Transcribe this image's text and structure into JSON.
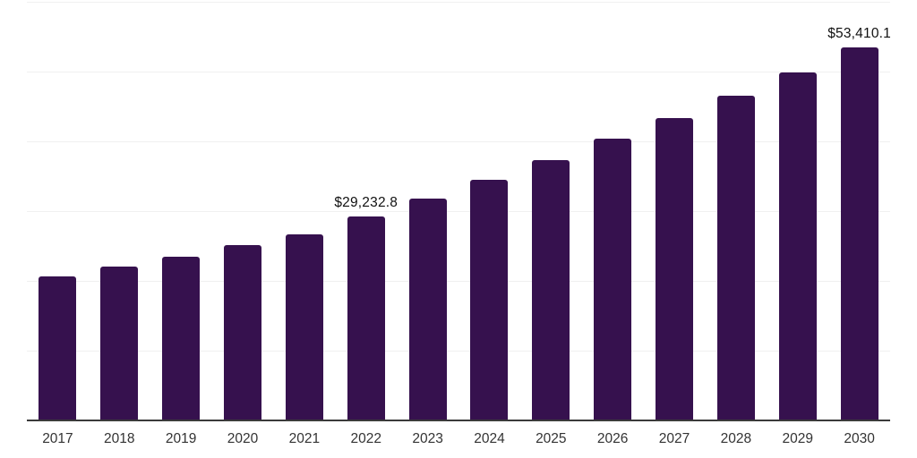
{
  "chart_data": {
    "type": "bar",
    "title": "",
    "xlabel": "",
    "ylabel": "",
    "categories": [
      "2017",
      "2018",
      "2019",
      "2020",
      "2021",
      "2022",
      "2023",
      "2024",
      "2025",
      "2026",
      "2027",
      "2028",
      "2029",
      "2030"
    ],
    "values": [
      20700,
      22100,
      23500,
      25150,
      26700,
      29232.8,
      31800,
      34500,
      37350,
      40400,
      43300,
      46600,
      49900,
      53410.1
    ],
    "data_labels": {
      "2022": "$29,232.8",
      "2030": "$53,410.1"
    },
    "value_prefix": "$",
    "ylim": [
      0,
      60000
    ],
    "grid_interval": 10000,
    "grid": "horizontal",
    "legend": "none",
    "colors": {
      "bar": "#36114E",
      "axis_line": "#3B3B3B",
      "gridline": "#F0F0F0",
      "tick_label": "#333333",
      "data_label": "#111111",
      "background": "#FFFFFF"
    }
  }
}
